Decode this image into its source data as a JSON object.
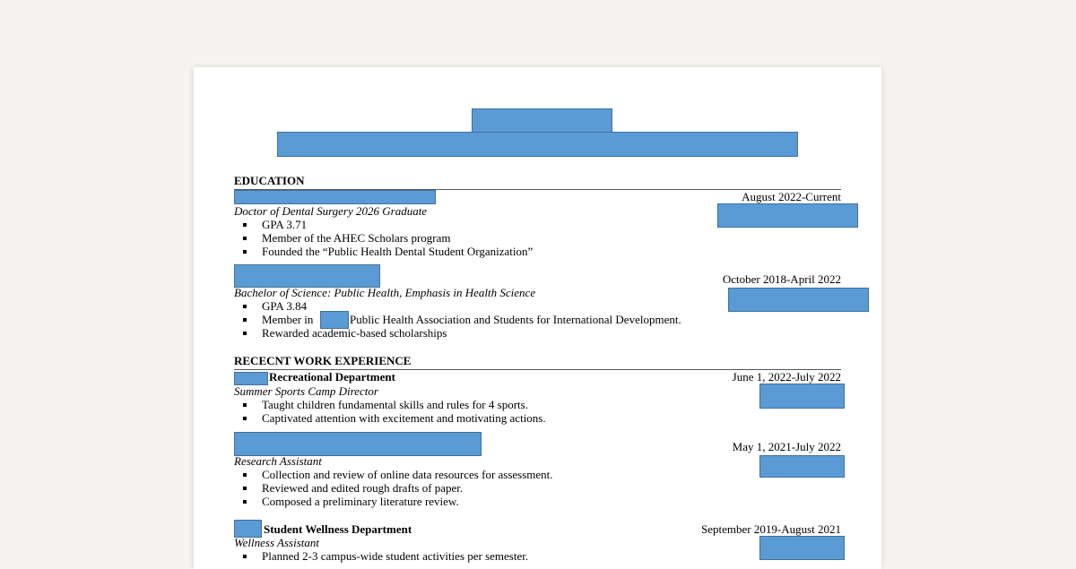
{
  "education": {
    "heading": "EDUCATION",
    "entries": [
      {
        "dates": "August 2022-Current",
        "degree": "Doctor of Dental Surgery 2026 Graduate",
        "bullets": [
          "GPA 3.71",
          "Member of the AHEC Scholars program",
          "Founded the “Public Health Dental Student Organization”"
        ]
      },
      {
        "dates": "October 2018-April 2022",
        "degree": "Bachelor of Science: Public Health, Emphasis in Health Science",
        "bullets": [
          "GPA 3.84",
          [
            "Member in",
            "Public Health Association and Students for International Development."
          ],
          "Rewarded academic-based scholarships"
        ]
      }
    ]
  },
  "work": {
    "heading": "RECECNT WORK EXPERIENCE",
    "entries": [
      {
        "organization": "Recreational Department",
        "dates": "June 1, 2022-July 2022",
        "role": "Summer Sports Camp Director",
        "bullets": [
          "Taught children fundamental skills and rules for 4 sports.",
          "Captivated attention with excitement and motivating actions."
        ]
      },
      {
        "dates": "May 1, 2021-July 2022",
        "role": "Research Assistant",
        "bullets": [
          "Collection and review of online data resources for assessment.",
          "Reviewed and edited rough drafts of paper.",
          "Composed a preliminary literature review."
        ]
      },
      {
        "organization": "Student Wellness Department",
        "dates": "September 2019-August 2021",
        "role": "Wellness Assistant",
        "bullets": [
          "Planned 2-3 campus-wide student activities per semester."
        ]
      }
    ]
  }
}
